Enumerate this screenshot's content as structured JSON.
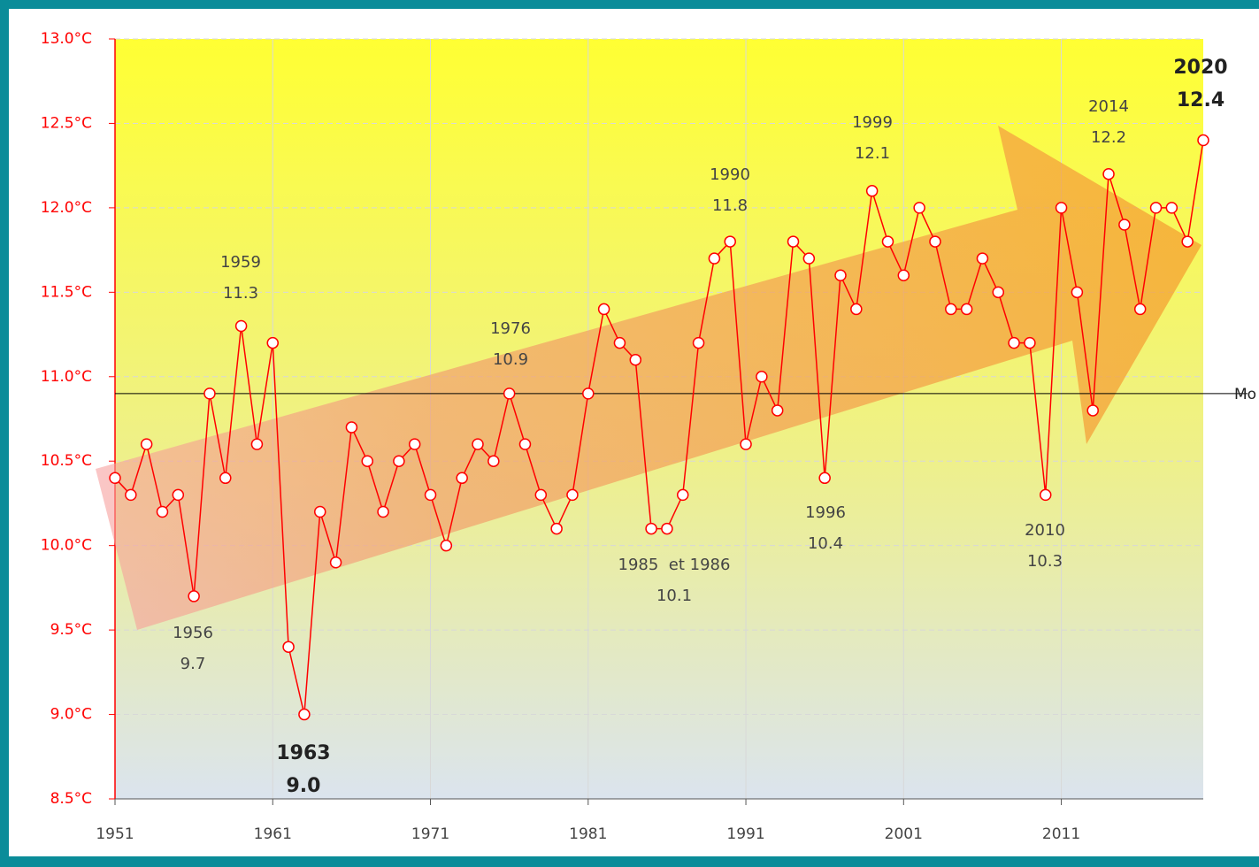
{
  "chart_data": {
    "type": "line",
    "xlim": [
      1951,
      2020
    ],
    "xticks": [
      1951,
      1961,
      1971,
      1981,
      1991,
      2001,
      2011
    ],
    "ylim": [
      8.5,
      13.0
    ],
    "yticks": [
      {
        "value": 8.5,
        "label": "8.5°C"
      },
      {
        "value": 9.0,
        "label": "9.0°C"
      },
      {
        "value": 9.5,
        "label": "9.5°C"
      },
      {
        "value": 10.0,
        "label": "10.0°C"
      },
      {
        "value": 10.5,
        "label": "10.5°C"
      },
      {
        "value": 11.0,
        "label": "11.0°C"
      },
      {
        "value": 11.5,
        "label": "11.5°C"
      },
      {
        "value": 12.0,
        "label": "12.0°C"
      },
      {
        "value": 12.5,
        "label": "12.5°C"
      },
      {
        "value": 13.0,
        "label": "13.0°C"
      }
    ],
    "grid": true,
    "series": [
      {
        "color": "#ff0000",
        "x": [
          1951,
          1952,
          1953,
          1954,
          1955,
          1956,
          1957,
          1958,
          1959,
          1960,
          1961,
          1962,
          1963,
          1964,
          1965,
          1966,
          1967,
          1968,
          1969,
          1970,
          1971,
          1972,
          1973,
          1974,
          1975,
          1976,
          1977,
          1978,
          1979,
          1980,
          1981,
          1982,
          1983,
          1984,
          1985,
          1986,
          1987,
          1988,
          1989,
          1990,
          1991,
          1992,
          1993,
          1994,
          1995,
          1996,
          1997,
          1998,
          1999,
          2000,
          2001,
          2002,
          2003,
          2004,
          2005,
          2006,
          2007,
          2008,
          2009,
          2010,
          2011,
          2012,
          2013,
          2014,
          2015,
          2016,
          2017,
          2018,
          2019,
          2020
        ],
        "values": [
          10.4,
          10.3,
          10.6,
          10.2,
          10.3,
          9.7,
          10.9,
          10.4,
          11.3,
          10.6,
          11.2,
          9.4,
          9.0,
          10.2,
          9.9,
          10.7,
          10.5,
          10.2,
          10.5,
          10.6,
          10.3,
          10.0,
          10.4,
          10.6,
          10.5,
          10.9,
          10.6,
          10.3,
          10.1,
          10.3,
          10.9,
          11.4,
          11.2,
          11.1,
          10.1,
          10.1,
          10.3,
          11.2,
          11.7,
          11.8,
          10.6,
          11.0,
          10.8,
          11.8,
          11.7,
          10.4,
          11.6,
          11.4,
          12.1,
          11.8,
          11.6,
          12.0,
          11.8,
          11.4,
          11.4,
          11.7,
          11.5,
          11.2,
          11.2,
          10.3,
          12.0,
          11.5,
          10.8,
          12.2,
          11.9,
          11.4,
          12.0,
          12.0,
          11.8,
          12.4
        ]
      }
    ],
    "mean": {
      "value": 10.9,
      "label": "Mo",
      "color": "#000000"
    },
    "annotations": [
      {
        "lines": [
          "1959",
          "11.3"
        ],
        "bold": false
      },
      {
        "lines": [
          "1956",
          "9.7"
        ],
        "bold": false
      },
      {
        "lines": [
          "1963",
          "9.0"
        ],
        "bold": true
      },
      {
        "lines": [
          "1976",
          "10.9"
        ],
        "bold": false
      },
      {
        "lines": [
          "1985  et 1986",
          "10.1"
        ],
        "bold": false
      },
      {
        "lines": [
          "1990",
          "11.8"
        ],
        "bold": false
      },
      {
        "lines": [
          "1996",
          "10.4"
        ],
        "bold": false
      },
      {
        "lines": [
          "1999",
          "12.1"
        ],
        "bold": false
      },
      {
        "lines": [
          "2010",
          "10.3"
        ],
        "bold": false
      },
      {
        "lines": [
          "2014",
          "12.2"
        ],
        "bold": false
      },
      {
        "lines": [
          "2020",
          "12.4"
        ],
        "bold": true
      }
    ]
  }
}
